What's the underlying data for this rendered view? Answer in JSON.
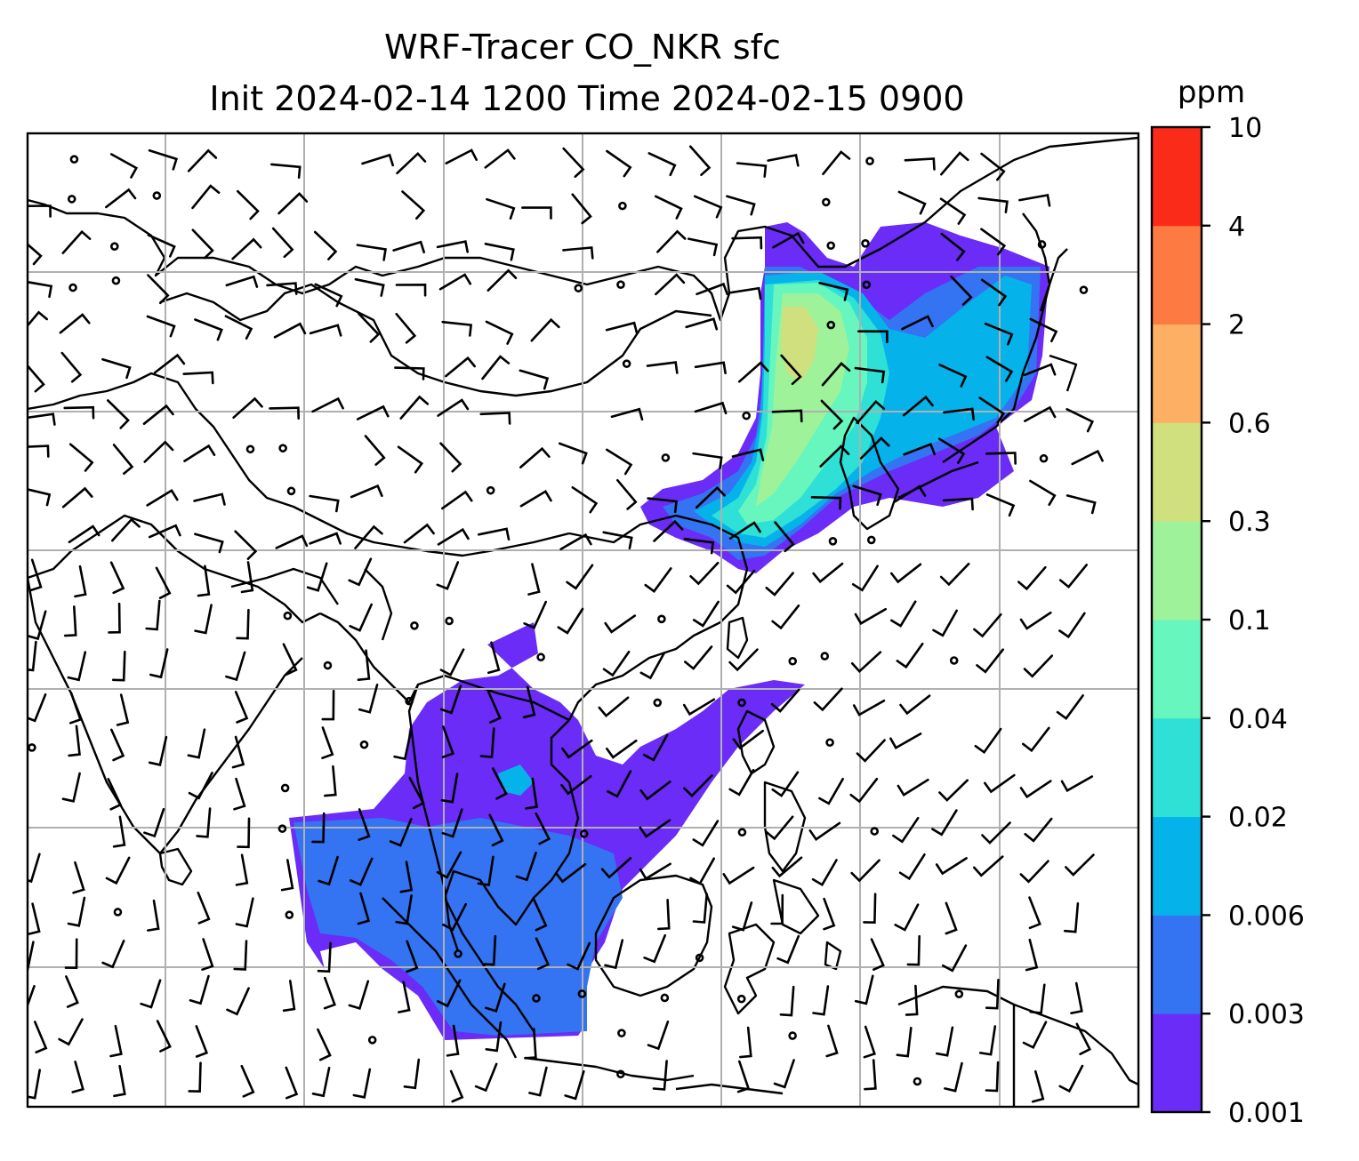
{
  "title": {
    "line1": "WRF-Tracer CO_NKR sfc",
    "line2": "Init 2024-02-14 1200 Time 2024-02-15 0900"
  },
  "colorbar": {
    "unit": "ppm",
    "levels": [
      "0.001",
      "0.003",
      "0.006",
      "0.02",
      "0.04",
      "0.1",
      "0.3",
      "0.6",
      "2",
      "4",
      "10"
    ],
    "colors": [
      "#6a2cf6",
      "#3473f2",
      "#06b2ea",
      "#2ee0d6",
      "#66f6be",
      "#9ef29a",
      "#d0e07f",
      "#fdb064",
      "#fd7a42",
      "#fb2b19"
    ]
  },
  "map": {
    "coastline_color": "#000000",
    "grid_color": "#b0b0b0",
    "wind_barb_color": "#000000",
    "background": "#ffffff"
  }
}
